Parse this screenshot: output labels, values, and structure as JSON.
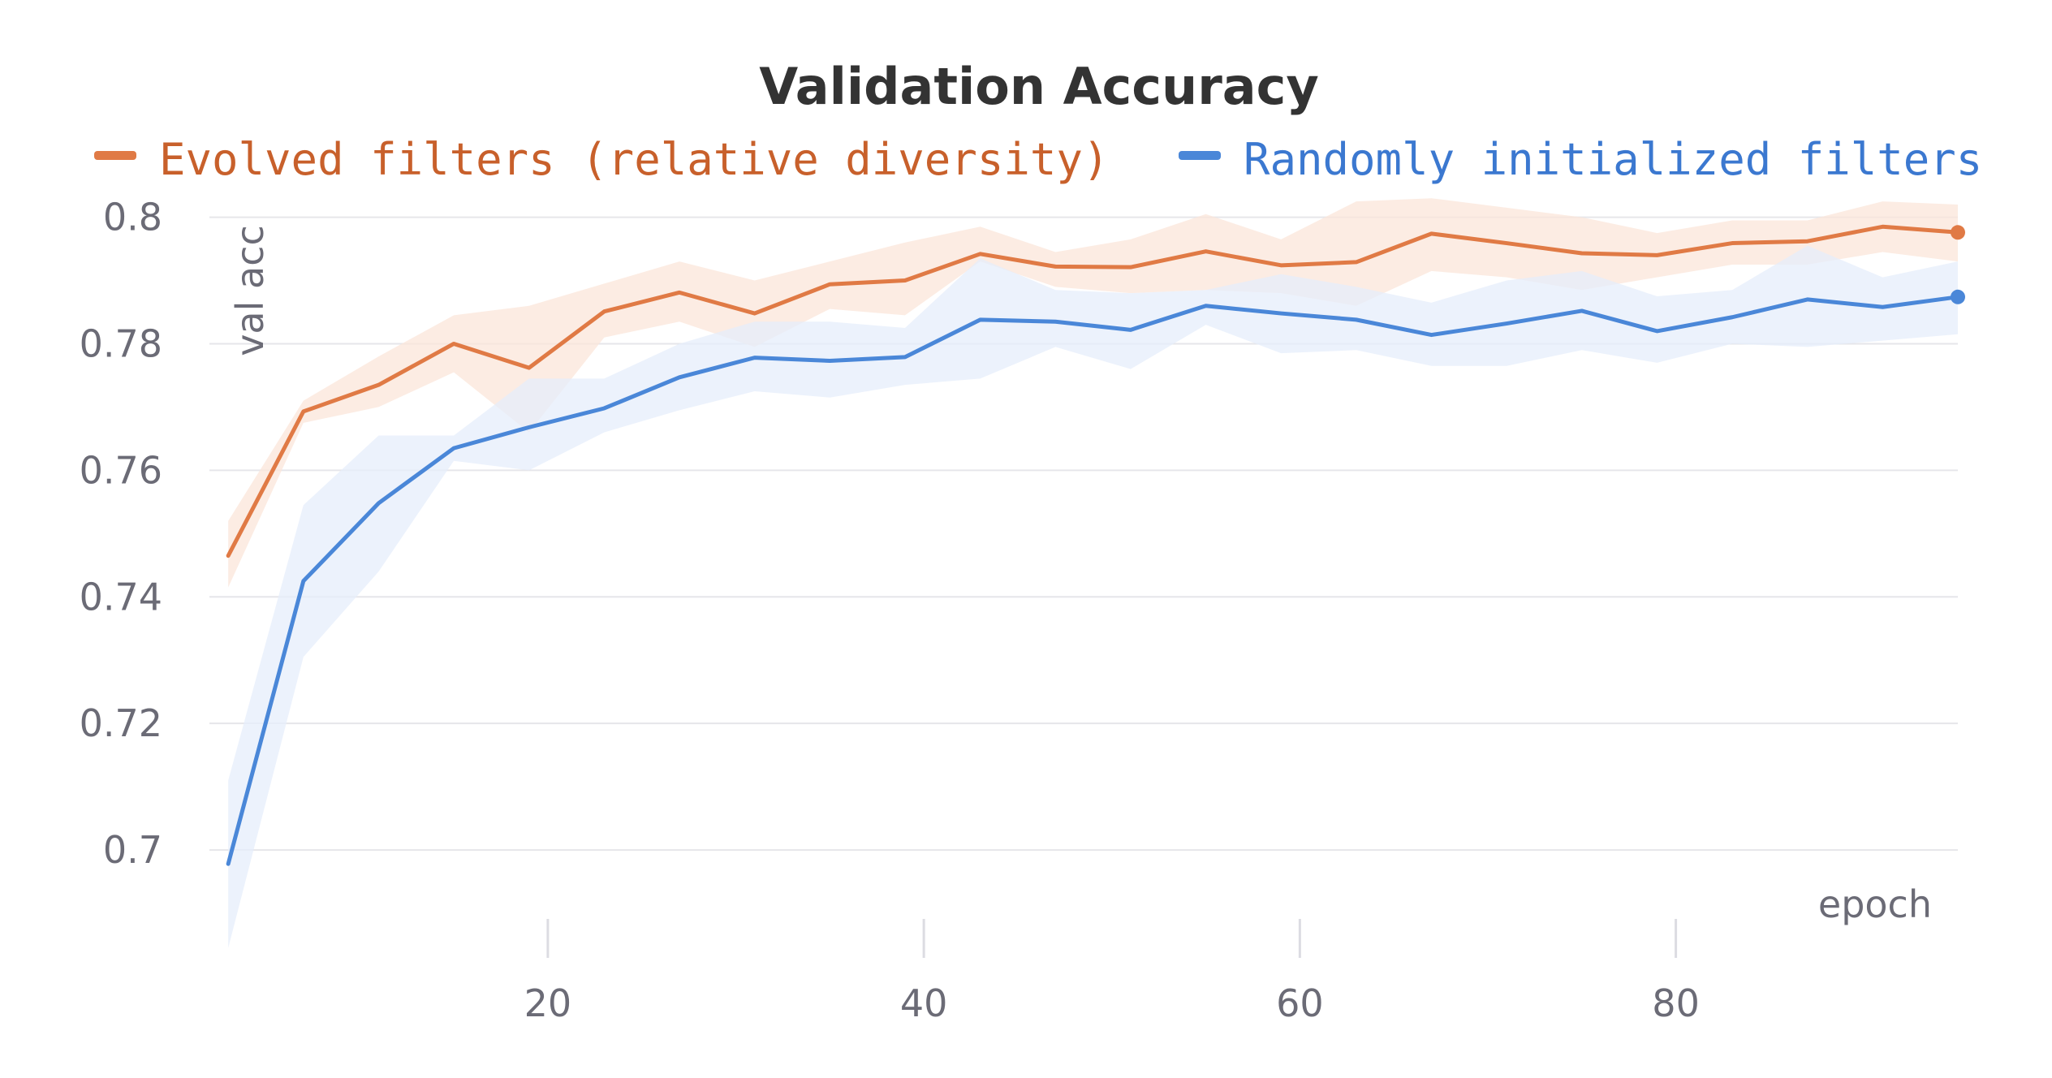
{
  "chart_data": {
    "type": "line",
    "title": "Validation Accuracy",
    "xlabel": "epoch",
    "ylabel": "val acc",
    "xlim": [
      2,
      95
    ],
    "ylim": [
      0.685,
      0.802
    ],
    "x_ticks": [
      20,
      40,
      60,
      80
    ],
    "x_tick_labels": [
      "20",
      "40",
      "60",
      "80"
    ],
    "y_ticks": [
      0.7,
      0.72,
      0.74,
      0.76,
      0.78,
      0.8
    ],
    "y_tick_labels": [
      "0.7",
      "0.72",
      "0.74",
      "0.76",
      "0.78",
      "0.8"
    ],
    "grid": true,
    "legend_position": "top",
    "x": [
      3,
      7,
      11,
      15,
      19,
      23,
      27,
      31,
      35,
      39,
      43,
      47,
      51,
      55,
      59,
      63,
      67,
      71,
      75,
      79,
      83,
      87,
      91,
      95
    ],
    "series": [
      {
        "name": "Evolved filters (relative diversity)",
        "color": "#e07a45",
        "text_color": "#c8602b",
        "band_color": "#fbe6da",
        "values": [
          0.7465,
          0.7693,
          0.7735,
          0.78,
          0.7762,
          0.7851,
          0.7881,
          0.7848,
          0.7894,
          0.79,
          0.7942,
          0.7922,
          0.7921,
          0.7946,
          0.7924,
          0.7929,
          0.7974,
          0.7959,
          0.7943,
          0.794,
          0.7959,
          0.7962,
          0.7985,
          0.7976
        ],
        "upper": [
          0.752,
          0.771,
          0.778,
          0.7845,
          0.786,
          0.7895,
          0.793,
          0.79,
          0.793,
          0.796,
          0.7985,
          0.7945,
          0.7965,
          0.8005,
          0.7965,
          0.8025,
          0.803,
          0.8015,
          0.8,
          0.7975,
          0.7995,
          0.7995,
          0.8025,
          0.802
        ],
        "lower": [
          0.7415,
          0.7675,
          0.77,
          0.7755,
          0.766,
          0.781,
          0.7835,
          0.7795,
          0.7855,
          0.7845,
          0.793,
          0.789,
          0.788,
          0.7885,
          0.788,
          0.786,
          0.7915,
          0.7905,
          0.7885,
          0.7905,
          0.7925,
          0.7925,
          0.7945,
          0.793
        ]
      },
      {
        "name": "Randomly initialized filters",
        "color": "#4a87d8",
        "text_color": "#3b78d0",
        "band_color": "#e6eefb",
        "values": [
          0.6978,
          0.7425,
          0.7548,
          0.7635,
          0.7668,
          0.7698,
          0.7747,
          0.7778,
          0.7773,
          0.7779,
          0.7838,
          0.7835,
          0.7822,
          0.786,
          0.7848,
          0.7838,
          0.7814,
          0.7832,
          0.7852,
          0.782,
          0.7842,
          0.787,
          0.7858,
          0.7874
        ],
        "upper": [
          0.711,
          0.7545,
          0.7655,
          0.7655,
          0.7745,
          0.7745,
          0.78,
          0.7835,
          0.7835,
          0.7825,
          0.7935,
          0.7885,
          0.788,
          0.7885,
          0.791,
          0.789,
          0.7865,
          0.79,
          0.7915,
          0.7875,
          0.7885,
          0.7955,
          0.7905,
          0.793
        ],
        "lower": [
          0.6845,
          0.7305,
          0.744,
          0.7615,
          0.76,
          0.766,
          0.7695,
          0.7725,
          0.7715,
          0.7735,
          0.7745,
          0.7795,
          0.776,
          0.783,
          0.7785,
          0.779,
          0.7765,
          0.7765,
          0.779,
          0.777,
          0.78,
          0.7795,
          0.7805,
          0.7815
        ]
      }
    ]
  }
}
